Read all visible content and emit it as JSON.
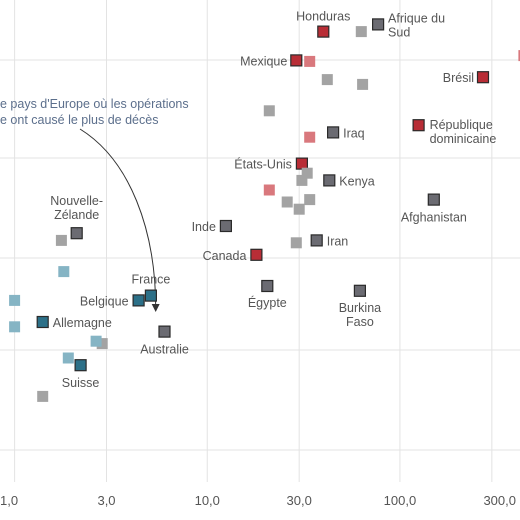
{
  "chart_data": {
    "type": "scatter",
    "x_scale": "log",
    "xlim": [
      0.84,
      420
    ],
    "x_ticks": [
      {
        "value": 1,
        "label": "1,0"
      },
      {
        "value": 3,
        "label": "3,0"
      },
      {
        "value": 10,
        "label": "10,0"
      },
      {
        "value": 30,
        "label": "30,0"
      },
      {
        "value": 100,
        "label": "100,0"
      },
      {
        "value": 300,
        "label": "300,0"
      }
    ],
    "y_grid_rows": 6,
    "grid": true,
    "colors": {
      "gray": "#a3a3a3",
      "dark_gray": "#6b6b72",
      "red": "#b82d36",
      "light_red": "#d9787d",
      "teal": "#2c7088",
      "light_teal": "#85b4c4",
      "outline": "#2a2a2a"
    },
    "annotation": {
      "lines": [
        "e pays d'Europe où les opérations",
        "e ont causé le plus de décès"
      ],
      "arrow_to": {
        "x": 5.4
      }
    },
    "points": [
      {
        "x": 40,
        "y": 9.55,
        "style": "red",
        "label": "Honduras"
      },
      {
        "x": 77,
        "y": 9.7,
        "style": "dark_gray",
        "label": "Afrique du Sud"
      },
      {
        "x": 63,
        "y": 9.55,
        "style": "gray",
        "label": ""
      },
      {
        "x": 29,
        "y": 8.95,
        "style": "red",
        "label": "Mexique"
      },
      {
        "x": 34,
        "y": 8.93,
        "style": "light_red",
        "label": ""
      },
      {
        "x": 440,
        "y": 9.05,
        "style": "light_red",
        "label": ""
      },
      {
        "x": 42,
        "y": 8.55,
        "style": "gray",
        "label": ""
      },
      {
        "x": 64,
        "y": 8.45,
        "style": "gray",
        "label": ""
      },
      {
        "x": 270,
        "y": 8.6,
        "style": "red",
        "label": "Brésil"
      },
      {
        "x": 21,
        "y": 7.9,
        "style": "gray",
        "label": ""
      },
      {
        "x": 125,
        "y": 7.6,
        "style": "red",
        "label": "République dominicaine"
      },
      {
        "x": 45,
        "y": 7.45,
        "style": "dark_gray",
        "label": "Iraq"
      },
      {
        "x": 34,
        "y": 7.35,
        "style": "light_red",
        "label": ""
      },
      {
        "x": 31,
        "y": 6.8,
        "style": "red",
        "label": "États-Unis"
      },
      {
        "x": 33,
        "y": 6.6,
        "style": "gray",
        "label": ""
      },
      {
        "x": 31,
        "y": 6.45,
        "style": "gray",
        "label": ""
      },
      {
        "x": 43,
        "y": 6.45,
        "style": "dark_gray",
        "label": "Kenya"
      },
      {
        "x": 21,
        "y": 6.25,
        "style": "light_red",
        "label": ""
      },
      {
        "x": 26,
        "y": 6.0,
        "style": "gray",
        "label": ""
      },
      {
        "x": 34,
        "y": 6.05,
        "style": "gray",
        "label": ""
      },
      {
        "x": 30,
        "y": 5.85,
        "style": "gray",
        "label": ""
      },
      {
        "x": 150,
        "y": 6.05,
        "style": "dark_gray",
        "label": "Afghanistan"
      },
      {
        "x": 12.5,
        "y": 5.5,
        "style": "dark_gray",
        "label": "Inde"
      },
      {
        "x": 37,
        "y": 5.2,
        "style": "dark_gray",
        "label": "Iran"
      },
      {
        "x": 29,
        "y": 5.15,
        "style": "gray",
        "label": ""
      },
      {
        "x": 18,
        "y": 4.9,
        "style": "red",
        "label": "Canada"
      },
      {
        "x": 2.1,
        "y": 5.35,
        "style": "dark_gray",
        "label": "Nouvelle-Zélande"
      },
      {
        "x": 1.75,
        "y": 5.2,
        "style": "gray",
        "label": ""
      },
      {
        "x": 1.8,
        "y": 4.55,
        "style": "light_teal",
        "label": ""
      },
      {
        "x": 20.5,
        "y": 4.25,
        "style": "dark_gray",
        "label": "Égypte"
      },
      {
        "x": 62,
        "y": 4.15,
        "style": "dark_gray",
        "label": "Burkina Faso"
      },
      {
        "x": 5.1,
        "y": 4.05,
        "style": "teal",
        "label": "France"
      },
      {
        "x": 4.4,
        "y": 3.95,
        "style": "teal",
        "label": "Belgique"
      },
      {
        "x": 1.0,
        "y": 3.95,
        "style": "light_teal",
        "label": ""
      },
      {
        "x": 1.0,
        "y": 3.4,
        "style": "light_teal",
        "label": ""
      },
      {
        "x": 1.4,
        "y": 3.5,
        "style": "teal",
        "label": "Allemagne"
      },
      {
        "x": 6.0,
        "y": 3.3,
        "style": "dark_gray",
        "label": "Australie"
      },
      {
        "x": 2.85,
        "y": 3.05,
        "style": "gray",
        "label": ""
      },
      {
        "x": 2.65,
        "y": 3.1,
        "style": "light_teal",
        "label": ""
      },
      {
        "x": 1.9,
        "y": 2.75,
        "style": "light_teal",
        "label": ""
      },
      {
        "x": 2.2,
        "y": 2.6,
        "style": "teal",
        "label": "Suisse"
      },
      {
        "x": 1.4,
        "y": 1.95,
        "style": "gray",
        "label": ""
      }
    ]
  }
}
